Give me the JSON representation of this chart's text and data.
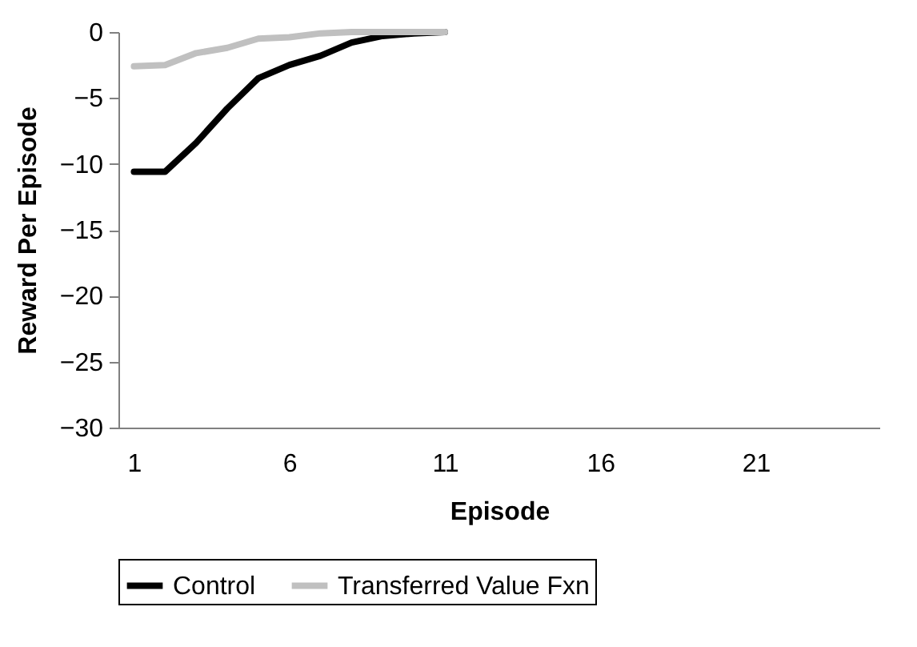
{
  "chart_data": {
    "type": "line",
    "xlabel": "Episode",
    "ylabel": "Reward Per Episode",
    "x": [
      1,
      2,
      3,
      4,
      5,
      6,
      7,
      8,
      9,
      10,
      11
    ],
    "series": [
      {
        "name": "Control",
        "color": "#000000",
        "values": [
          -10.6,
          -10.6,
          -8.4,
          -5.8,
          -3.5,
          -2.5,
          -1.8,
          -0.8,
          -0.3,
          -0.1,
          0
        ]
      },
      {
        "name": "Transferred Value Fxn",
        "color": "#c0c0c0",
        "values": [
          -2.6,
          -2.5,
          -1.6,
          -1.2,
          -0.5,
          -0.4,
          -0.1,
          0,
          0,
          0,
          0
        ]
      }
    ],
    "xlim": [
      0.5,
      25
    ],
    "xticks": [
      1,
      6,
      11,
      16,
      21
    ],
    "ylim": [
      -30,
      0
    ],
    "yticks": [
      -30,
      -25,
      -20,
      -15,
      -10,
      -5,
      0
    ],
    "grid": false,
    "legend": "bottom",
    "marker": "none",
    "line_style": "solid"
  }
}
